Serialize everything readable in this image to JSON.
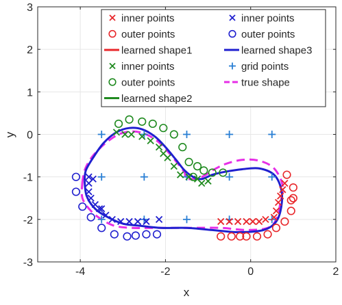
{
  "chart_data": {
    "type": "scatter",
    "title": "",
    "xlabel": "x",
    "ylabel": "y",
    "xlim": [
      -5,
      2
    ],
    "ylim": [
      -3,
      3
    ],
    "xticks": [
      -4,
      -2,
      0,
      2
    ],
    "yticks": [
      -3,
      -2,
      -1,
      0,
      1,
      2,
      3
    ],
    "xtick_labels": [
      "-4",
      "-2",
      "0",
      "2"
    ],
    "ytick_labels": [
      "-3",
      "-2",
      "-1",
      "0",
      "1",
      "2",
      "3"
    ],
    "grid": true,
    "legend_position": "top-right",
    "legend_entries": [
      {
        "label": "inner points",
        "marker": "x",
        "color": "#e8262a",
        "col": 0,
        "row": 0
      },
      {
        "label": "inner points",
        "marker": "x",
        "color": "#1f1fcf",
        "col": 1,
        "row": 0
      },
      {
        "label": "outer points",
        "marker": "o",
        "color": "#e8262a",
        "col": 0,
        "row": 1
      },
      {
        "label": "outer points",
        "marker": "o",
        "color": "#1f1fcf",
        "col": 1,
        "row": 1
      },
      {
        "label": "learned shape1",
        "marker": "line",
        "color": "#e8262a",
        "col": 0,
        "row": 2
      },
      {
        "label": "learned shape3",
        "marker": "line",
        "color": "#1f1fcf",
        "col": 1,
        "row": 2
      },
      {
        "label": "inner points",
        "marker": "x",
        "color": "#1f8a1f",
        "col": 0,
        "row": 3
      },
      {
        "label": "grid points",
        "marker": "+",
        "color": "#2a7fd4",
        "col": 1,
        "row": 3
      },
      {
        "label": "outer points",
        "marker": "o",
        "color": "#1f8a1f",
        "col": 0,
        "row": 4
      },
      {
        "label": "true shape",
        "marker": "dash",
        "color": "#e62ee6",
        "col": 1,
        "row": 4
      },
      {
        "label": "learned shape2",
        "marker": "line",
        "color": "#1f8a1f",
        "col": 0,
        "row": 5
      }
    ],
    "series": [
      {
        "name": "grid points",
        "marker": "+",
        "color": "#2a7fd4",
        "points": [
          [
            -3.5,
            0
          ],
          [
            -2.5,
            0
          ],
          [
            -1.5,
            0
          ],
          [
            -0.5,
            0
          ],
          [
            0.5,
            0
          ],
          [
            -3.5,
            -1
          ],
          [
            -2.5,
            -1
          ],
          [
            -1.5,
            -1
          ],
          [
            -0.5,
            -1
          ],
          [
            0.5,
            -1
          ],
          [
            -3.5,
            -2
          ],
          [
            -2.5,
            -2
          ],
          [
            -1.5,
            -2
          ],
          [
            -0.5,
            -2
          ],
          [
            0.5,
            -2
          ]
        ]
      },
      {
        "name": "inner points",
        "marker": "x",
        "color": "#1f8a1f",
        "points": [
          [
            -3.15,
            0.05
          ],
          [
            -2.95,
            0
          ],
          [
            -2.8,
            0
          ],
          [
            -2.55,
            -0.05
          ],
          [
            -2.35,
            -0.15
          ],
          [
            -2.15,
            -0.3
          ],
          [
            -2.05,
            -0.45
          ],
          [
            -1.95,
            -0.55
          ],
          [
            -1.8,
            -0.75
          ],
          [
            -1.65,
            -0.95
          ],
          [
            -1.45,
            -1.0
          ],
          [
            -1.25,
            -1.05
          ],
          [
            -1.15,
            -1.15
          ],
          [
            -1.0,
            -1.1
          ]
        ]
      },
      {
        "name": "outer points",
        "marker": "o",
        "color": "#1f8a1f",
        "points": [
          [
            -3.1,
            0.25
          ],
          [
            -2.85,
            0.35
          ],
          [
            -2.55,
            0.3
          ],
          [
            -2.3,
            0.25
          ],
          [
            -2.05,
            0.15
          ],
          [
            -1.8,
            0
          ],
          [
            -1.6,
            -0.3
          ],
          [
            -1.45,
            -0.65
          ],
          [
            -1.25,
            -0.75
          ],
          [
            -1.1,
            -0.85
          ],
          [
            -0.9,
            -0.9
          ],
          [
            -0.65,
            -0.9
          ],
          [
            -1.35,
            -1.0
          ]
        ]
      },
      {
        "name": "inner points",
        "marker": "x",
        "color": "#1f1fcf",
        "points": [
          [
            -3.8,
            -1.0
          ],
          [
            -3.7,
            -1.05
          ],
          [
            -3.8,
            -1.15
          ],
          [
            -3.8,
            -1.35
          ],
          [
            -3.75,
            -1.5
          ],
          [
            -3.65,
            -1.65
          ],
          [
            -3.5,
            -1.75
          ],
          [
            -3.4,
            -1.9
          ],
          [
            -3.25,
            -2.0
          ],
          [
            -3.05,
            -2.05
          ],
          [
            -2.85,
            -2.05
          ],
          [
            -2.65,
            -2.05
          ],
          [
            -2.45,
            -2.05
          ],
          [
            -2.15,
            -2.0
          ],
          [
            -3.55,
            -1.75
          ]
        ]
      },
      {
        "name": "outer points",
        "marker": "o",
        "color": "#1f1fcf",
        "points": [
          [
            -4.1,
            -1.0
          ],
          [
            -4.1,
            -1.35
          ],
          [
            -3.95,
            -1.7
          ],
          [
            -3.75,
            -1.95
          ],
          [
            -3.5,
            -2.2
          ],
          [
            -3.2,
            -2.35
          ],
          [
            -2.9,
            -2.4
          ],
          [
            -2.7,
            -2.38
          ],
          [
            -2.45,
            -2.35
          ],
          [
            -2.2,
            -2.35
          ]
        ]
      },
      {
        "name": "inner points",
        "marker": "x",
        "color": "#e8262a",
        "points": [
          [
            -0.7,
            -2.05
          ],
          [
            -0.5,
            -2.05
          ],
          [
            -0.3,
            -2.05
          ],
          [
            -0.1,
            -2.05
          ],
          [
            0.05,
            -2.05
          ],
          [
            0.2,
            -2.05
          ],
          [
            0.35,
            -2.0
          ],
          [
            0.55,
            -1.95
          ],
          [
            0.6,
            -1.8
          ],
          [
            0.65,
            -1.6
          ],
          [
            0.7,
            -1.45
          ],
          [
            0.75,
            -1.3
          ],
          [
            0.8,
            -1.15
          ]
        ]
      },
      {
        "name": "outer points",
        "marker": "o",
        "color": "#e8262a",
        "points": [
          [
            -0.7,
            -2.4
          ],
          [
            -0.45,
            -2.4
          ],
          [
            -0.25,
            -2.4
          ],
          [
            -0.1,
            -2.4
          ],
          [
            0.15,
            -2.4
          ],
          [
            0.4,
            -2.35
          ],
          [
            0.6,
            -2.2
          ],
          [
            0.8,
            -2.05
          ],
          [
            0.95,
            -1.8
          ],
          [
            1.0,
            -1.5
          ],
          [
            1.0,
            -1.25
          ],
          [
            0.85,
            -0.95
          ],
          [
            0.95,
            -1.55
          ]
        ]
      }
    ],
    "curves": [
      {
        "name": "true shape",
        "style": "dash",
        "color": "#e62ee6",
        "points": [
          [
            -3.95,
            -1.1
          ],
          [
            -3.95,
            -1.5
          ],
          [
            -3.75,
            -1.8
          ],
          [
            -3.5,
            -2.0
          ],
          [
            -3.2,
            -2.15
          ],
          [
            -2.8,
            -2.2
          ],
          [
            -2.3,
            -2.2
          ],
          [
            -1.5,
            -2.2
          ],
          [
            -0.7,
            -2.2
          ],
          [
            -0.1,
            -2.25
          ],
          [
            0.4,
            -2.2
          ],
          [
            0.6,
            -2.0
          ],
          [
            0.7,
            -1.6
          ],
          [
            0.75,
            -1.2
          ],
          [
            0.55,
            -0.8
          ],
          [
            0.2,
            -0.62
          ],
          [
            -0.2,
            -0.6
          ],
          [
            -0.6,
            -0.7
          ],
          [
            -0.9,
            -0.85
          ],
          [
            -1.15,
            -1.0
          ],
          [
            -1.5,
            -1.05
          ],
          [
            -1.55,
            -0.9
          ],
          [
            -1.7,
            -0.7
          ],
          [
            -1.95,
            -0.4
          ],
          [
            -2.2,
            -0.15
          ],
          [
            -2.5,
            0.02
          ],
          [
            -2.8,
            0.07
          ],
          [
            -3.1,
            0.0
          ],
          [
            -3.4,
            -0.2
          ],
          [
            -3.7,
            -0.5
          ],
          [
            -3.88,
            -0.8
          ],
          [
            -3.95,
            -1.1
          ]
        ]
      },
      {
        "name": "learned shape3",
        "style": "line",
        "color": "#1f1fcf",
        "points": [
          [
            -3.9,
            -1.1
          ],
          [
            -3.85,
            -1.45
          ],
          [
            -3.65,
            -1.75
          ],
          [
            -3.35,
            -1.95
          ],
          [
            -3.0,
            -2.1
          ],
          [
            -2.6,
            -2.15
          ],
          [
            -2.1,
            -2.2
          ],
          [
            -1.5,
            -2.2
          ],
          [
            -0.9,
            -2.25
          ],
          [
            -0.3,
            -2.3
          ],
          [
            0.3,
            -2.25
          ],
          [
            0.6,
            -2.05
          ],
          [
            0.72,
            -1.7
          ],
          [
            0.72,
            -1.3
          ],
          [
            0.55,
            -0.95
          ],
          [
            0.2,
            -0.8
          ],
          [
            -0.2,
            -0.82
          ],
          [
            -0.6,
            -0.88
          ],
          [
            -0.9,
            -0.95
          ],
          [
            -1.15,
            -1.05
          ],
          [
            -1.35,
            -1.0
          ],
          [
            -1.55,
            -0.85
          ],
          [
            -1.75,
            -0.6
          ],
          [
            -2.0,
            -0.3
          ],
          [
            -2.25,
            -0.05
          ],
          [
            -2.55,
            0.12
          ],
          [
            -2.85,
            0.15
          ],
          [
            -3.15,
            0.05
          ],
          [
            -3.45,
            -0.2
          ],
          [
            -3.7,
            -0.55
          ],
          [
            -3.87,
            -0.85
          ],
          [
            -3.9,
            -1.1
          ]
        ]
      }
    ]
  }
}
